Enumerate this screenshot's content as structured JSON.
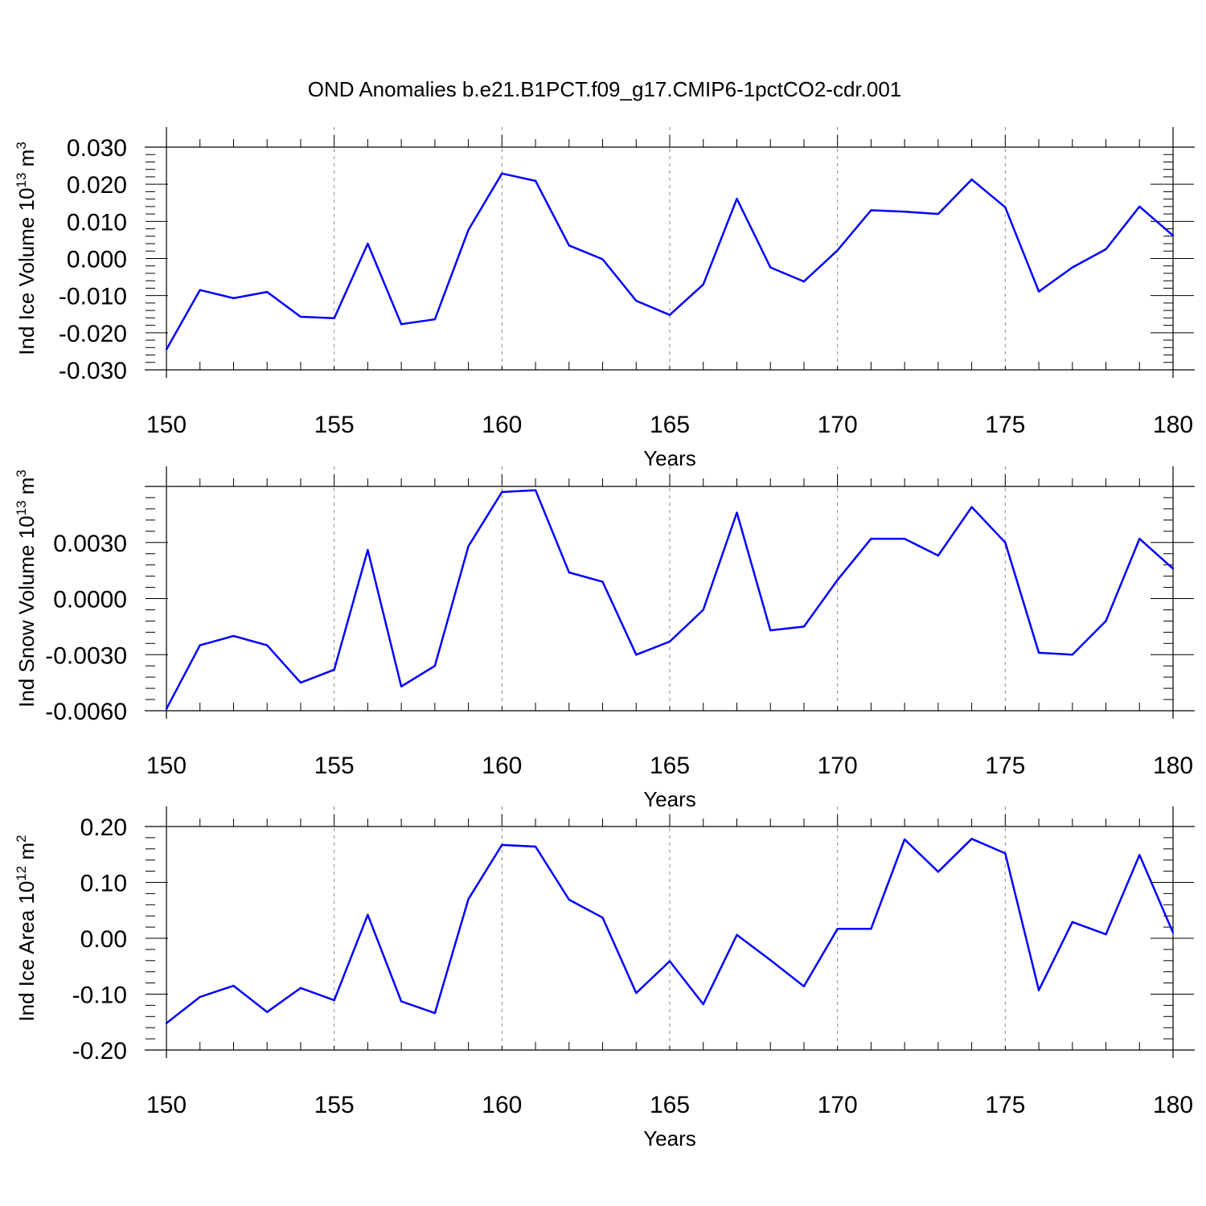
{
  "title": "OND Anomalies b.e21.B1PCT.f09_g17.CMIP6-1pctCO2-cdr.001",
  "colors": {
    "line": "#0000ff",
    "axis": "#000000",
    "grid": "#888888"
  },
  "chart_data": [
    {
      "type": "line",
      "ylabel": {
        "text": "Ind Ice Volume 10",
        "exponent": "13",
        "unit": " m",
        "unit_exponent": "3"
      },
      "xlabel": "Years",
      "xlim": [
        150,
        180
      ],
      "ylim": [
        -0.03,
        0.03
      ],
      "y_ticks": [
        "-0.030",
        "-0.020",
        "-0.010",
        "0.000",
        "0.010",
        "0.020",
        "0.030"
      ],
      "x_ticks": [
        "150",
        "155",
        "160",
        "165",
        "170",
        "175",
        "180"
      ],
      "grid": "vertical dashed at major x ticks",
      "x": [
        150,
        151,
        152,
        153,
        154,
        155,
        156,
        157,
        158,
        159,
        160,
        161,
        162,
        163,
        164,
        165,
        166,
        167,
        168,
        169,
        170,
        171,
        172,
        173,
        174,
        175,
        176,
        177,
        178,
        179,
        180
      ],
      "values": [
        -0.0245,
        -0.0085,
        -0.0107,
        -0.009,
        -0.0157,
        -0.0161,
        0.004,
        -0.0177,
        -0.0164,
        0.0077,
        0.0229,
        0.0209,
        0.0035,
        -0.0002,
        -0.0114,
        -0.0152,
        -0.007,
        0.0161,
        -0.0024,
        -0.0062,
        0.0022,
        0.013,
        0.0126,
        0.012,
        0.0213,
        0.0138,
        -0.0089,
        -0.0024,
        0.0025,
        0.014,
        0.0062
      ]
    },
    {
      "type": "line",
      "ylabel": {
        "text": "Ind Snow Volume 10",
        "exponent": "13",
        "unit": " m",
        "unit_exponent": "3"
      },
      "xlabel": "Years",
      "xlim": [
        150,
        180
      ],
      "ylim": [
        -0.006,
        0.006
      ],
      "y_ticks": [
        "-0.0060",
        "-0.0030",
        "0.0000",
        "0.0030"
      ],
      "x_ticks": [
        "150",
        "155",
        "160",
        "165",
        "170",
        "175",
        "180"
      ],
      "grid": "vertical dashed at major x ticks",
      "x": [
        150,
        151,
        152,
        153,
        154,
        155,
        156,
        157,
        158,
        159,
        160,
        161,
        162,
        163,
        164,
        165,
        166,
        167,
        168,
        169,
        170,
        171,
        172,
        173,
        174,
        175,
        176,
        177,
        178,
        179,
        180
      ],
      "values": [
        -0.0059,
        -0.0025,
        -0.002,
        -0.0025,
        -0.0045,
        -0.0038,
        0.0026,
        -0.0047,
        -0.0036,
        0.0028,
        0.0057,
        0.0058,
        0.0014,
        0.0009,
        -0.003,
        -0.0023,
        -0.0006,
        0.0046,
        -0.0017,
        -0.0015,
        0.001,
        0.0032,
        0.0032,
        0.0023,
        0.0049,
        0.003,
        -0.0029,
        -0.003,
        -0.0012,
        0.0032,
        0.0016
      ]
    },
    {
      "type": "line",
      "ylabel": {
        "text": "Ind Ice Area 10",
        "exponent": "12",
        "unit": " m",
        "unit_exponent": "2"
      },
      "xlabel": "Years",
      "xlim": [
        150,
        180
      ],
      "ylim": [
        -0.2,
        0.2
      ],
      "y_ticks": [
        "-0.20",
        "-0.10",
        "0.00",
        "0.10",
        "0.20"
      ],
      "x_ticks": [
        "150",
        "155",
        "160",
        "165",
        "170",
        "175",
        "180"
      ],
      "grid": "vertical dashed at major x ticks",
      "x": [
        150,
        151,
        152,
        153,
        154,
        155,
        156,
        157,
        158,
        159,
        160,
        161,
        162,
        163,
        164,
        165,
        166,
        167,
        168,
        169,
        170,
        171,
        172,
        173,
        174,
        175,
        176,
        177,
        178,
        179,
        180
      ],
      "values": [
        -0.152,
        -0.105,
        -0.085,
        -0.132,
        -0.089,
        -0.111,
        0.042,
        -0.113,
        -0.134,
        0.07,
        0.167,
        0.164,
        0.069,
        0.037,
        -0.098,
        -0.041,
        -0.118,
        0.006,
        -0.039,
        -0.086,
        0.017,
        0.017,
        0.177,
        0.119,
        0.178,
        0.152,
        -0.093,
        0.029,
        0.007,
        0.149,
        0.01
      ]
    }
  ]
}
